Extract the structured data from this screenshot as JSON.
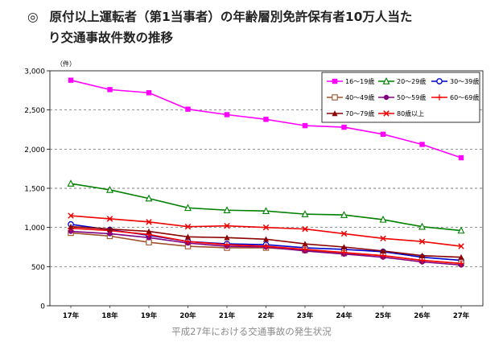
{
  "header": {
    "bullet": "◎",
    "title_line1": "原付以上運転者（第1当事者）の年齢層別免許保有者10万人当た",
    "title_line2": "り交通事故件数の推移"
  },
  "footer": {
    "caption": "平成27年における交通事故の発生状況"
  },
  "chart_data": {
    "type": "line",
    "title": "原付以上運転者（第1当事者）の年齢層別免許保有者10万人当たり交通事故件数の推移",
    "unit_label": "（件）",
    "xlabel": "",
    "ylabel": "（件）",
    "ylim": [
      0,
      3000
    ],
    "yticks": [
      0,
      500,
      1000,
      1500,
      2000,
      2500,
      3000
    ],
    "ytick_labels": [
      "0",
      "500",
      "1,000",
      "1,500",
      "2,000",
      "2,500",
      "3,000"
    ],
    "grid": "horizontal dashed",
    "legend_position": "top-right",
    "categories": [
      "17年",
      "18年",
      "19年",
      "20年",
      "21年",
      "22年",
      "23年",
      "24年",
      "25年",
      "26年",
      "27年"
    ],
    "series": [
      {
        "name": "16～19歳",
        "color": "#ff00ff",
        "marker": "square",
        "values": [
          2880,
          2760,
          2720,
          2510,
          2440,
          2380,
          2300,
          2280,
          2190,
          2060,
          1890
        ]
      },
      {
        "name": "20～29歳",
        "color": "#008000",
        "marker": "triangle-open",
        "values": [
          1560,
          1480,
          1370,
          1250,
          1220,
          1210,
          1170,
          1160,
          1100,
          1010,
          960
        ]
      },
      {
        "name": "30～39歳",
        "color": "#0000cc",
        "marker": "circle-open",
        "values": [
          1040,
          970,
          900,
          820,
          790,
          780,
          740,
          720,
          690,
          620,
          580
        ]
      },
      {
        "name": "40～49歳",
        "color": "#a0522d",
        "marker": "square-open",
        "values": [
          930,
          890,
          810,
          760,
          740,
          740,
          710,
          670,
          640,
          580,
          540
        ]
      },
      {
        "name": "50～59歳",
        "color": "#800080",
        "marker": "circle",
        "values": [
          950,
          920,
          870,
          800,
          760,
          750,
          700,
          660,
          620,
          560,
          520
        ]
      },
      {
        "name": "60～69歳",
        "color": "#ff0000",
        "marker": "plus",
        "values": [
          990,
          960,
          910,
          820,
          780,
          760,
          720,
          680,
          640,
          580,
          540
        ]
      },
      {
        "name": "70～79歳",
        "color": "#8b0000",
        "marker": "triangle",
        "values": [
          1010,
          980,
          950,
          880,
          870,
          850,
          790,
          750,
          700,
          640,
          620
        ]
      },
      {
        "name": "80歳以上",
        "color": "#ee0000",
        "marker": "x",
        "values": [
          1150,
          1110,
          1070,
          1010,
          1020,
          1000,
          980,
          920,
          860,
          820,
          760
        ]
      }
    ]
  }
}
